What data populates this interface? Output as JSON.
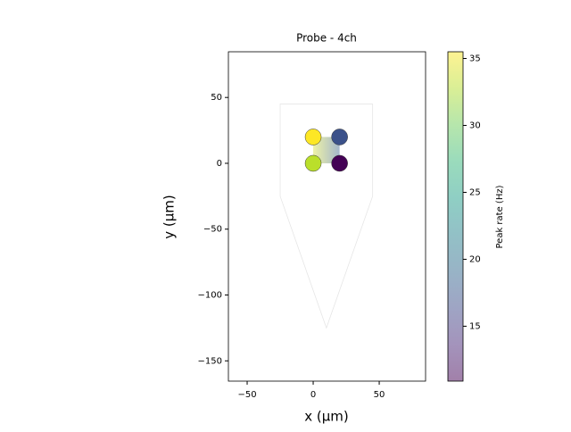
{
  "chart_data": {
    "type": "scatter",
    "title": "Probe - 4ch",
    "x_label": "x (μm)",
    "y_label": "y (μm)",
    "x": [
      0,
      20,
      0,
      20
    ],
    "y": [
      20,
      20,
      0,
      0
    ],
    "values": [
      35.5,
      17,
      33,
      11
    ],
    "xlim": [
      -64.2,
      85.1
    ],
    "xticks": [
      {
        "value": -50,
        "label": "−50"
      },
      0,
      50
    ],
    "ylim": [
      -165.4,
      84.7
    ],
    "yticks": [
      {
        "value": -150,
        "label": "−150"
      },
      {
        "value": -100,
        "label": "−100"
      },
      {
        "value": -50,
        "label": "−50"
      },
      0,
      50
    ],
    "contour": [
      [
        -25,
        45
      ],
      [
        45,
        45
      ],
      [
        45,
        -25
      ],
      [
        10,
        -125
      ],
      [
        -25,
        -25
      ]
    ],
    "colormap": "viridis",
    "colorbar_label": "Peak rate (Hz)",
    "clim": [
      10.9,
      35.5
    ],
    "cticks": [
      15,
      20,
      25,
      30,
      35
    ]
  }
}
